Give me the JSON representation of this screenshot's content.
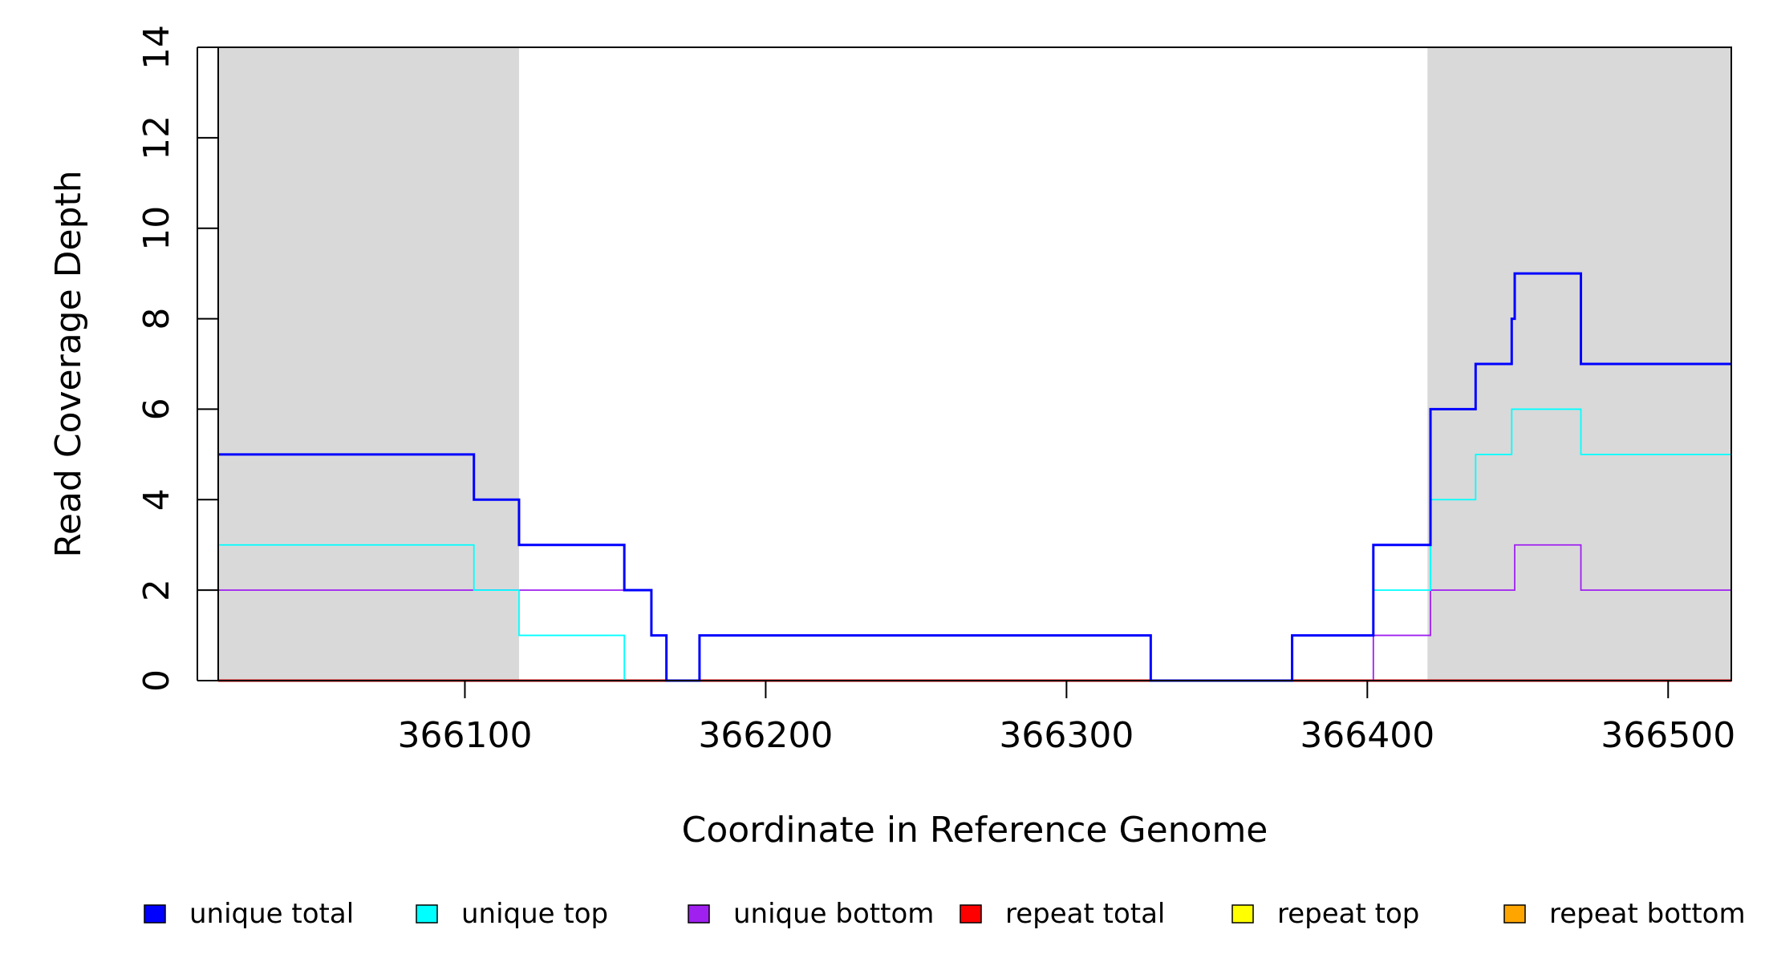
{
  "chart_data": {
    "type": "line",
    "step": true,
    "title": "",
    "xlabel": "Coordinate in Reference Genome",
    "ylabel": "Read Coverage Depth",
    "xlim": [
      366018,
      366521
    ],
    "ylim": [
      0,
      14
    ],
    "xticks": [
      366100,
      366200,
      366300,
      366400,
      366500
    ],
    "yticks": [
      0,
      2,
      4,
      6,
      8,
      10,
      12,
      14
    ],
    "grid": false,
    "legend_position": "bottom",
    "shaded_regions": [
      {
        "x_start": 366018,
        "x_end": 366118,
        "color": "#d9d9d9"
      },
      {
        "x_start": 366420,
        "x_end": 366521,
        "color": "#d9d9d9"
      }
    ],
    "series": [
      {
        "name": "unique total",
        "color": "#0000ff",
        "points": [
          [
            366018,
            5
          ],
          [
            366103,
            4
          ],
          [
            366118,
            3
          ],
          [
            366153,
            2
          ],
          [
            366162,
            1
          ],
          [
            366167,
            0
          ],
          [
            366178,
            1
          ],
          [
            366328,
            0
          ],
          [
            366375,
            1
          ],
          [
            366402,
            3
          ],
          [
            366421,
            6
          ],
          [
            366436,
            7
          ],
          [
            366448,
            8
          ],
          [
            366449,
            9
          ],
          [
            366471,
            7
          ],
          [
            366521,
            7
          ]
        ]
      },
      {
        "name": "unique top",
        "color": "#00ffff",
        "points": [
          [
            366018,
            3
          ],
          [
            366103,
            2
          ],
          [
            366118,
            1
          ],
          [
            366153,
            0
          ],
          [
            366375,
            1
          ],
          [
            366402,
            2
          ],
          [
            366421,
            4
          ],
          [
            366436,
            5
          ],
          [
            366448,
            6
          ],
          [
            366471,
            5
          ],
          [
            366521,
            5
          ]
        ]
      },
      {
        "name": "unique bottom",
        "color": "#a020f0",
        "points": [
          [
            366018,
            2
          ],
          [
            366162,
            1
          ],
          [
            366167,
            0
          ],
          [
            366178,
            1
          ],
          [
            366328,
            0
          ],
          [
            366402,
            1
          ],
          [
            366421,
            2
          ],
          [
            366449,
            3
          ],
          [
            366471,
            2
          ],
          [
            366521,
            2
          ]
        ]
      },
      {
        "name": "repeat total",
        "color": "#ff0000",
        "points": [
          [
            366018,
            0
          ],
          [
            366521,
            0
          ]
        ]
      },
      {
        "name": "repeat top",
        "color": "#ffff00",
        "points": [
          [
            366018,
            0
          ],
          [
            366521,
            0
          ]
        ]
      },
      {
        "name": "repeat bottom",
        "color": "#ffa500",
        "points": [
          [
            366018,
            0
          ],
          [
            366521,
            0
          ]
        ]
      }
    ]
  }
}
